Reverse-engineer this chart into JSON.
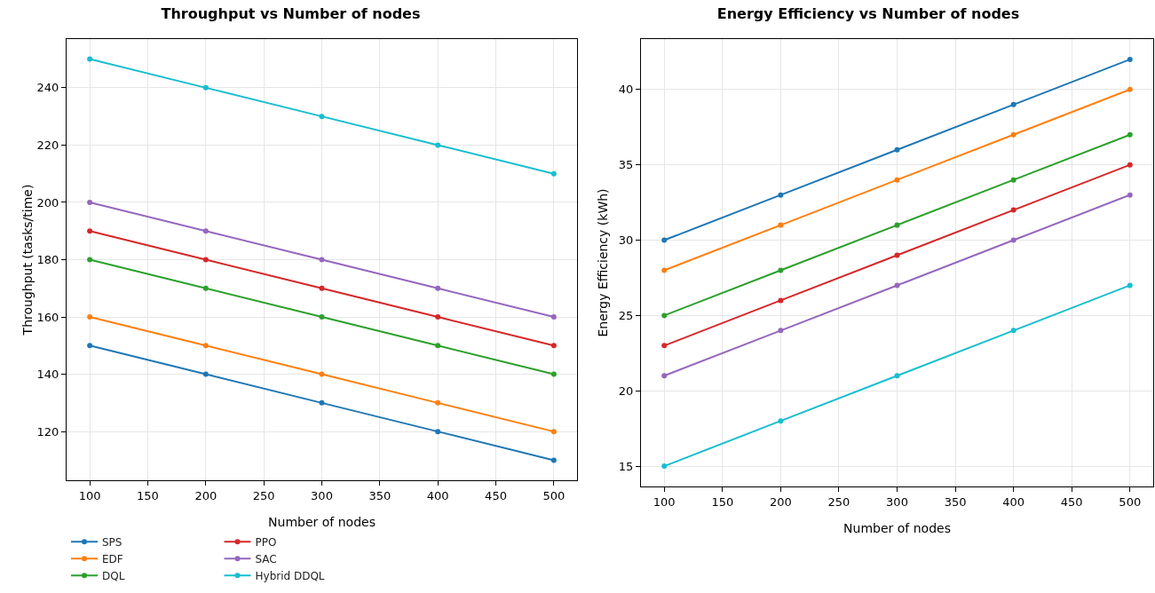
{
  "chart_data": [
    {
      "type": "line",
      "title": "Throughput vs Number of nodes",
      "xlabel": "Number of nodes",
      "ylabel": "Throughput (tasks/time)",
      "x": [
        100,
        200,
        300,
        400,
        500
      ],
      "xlim": [
        80,
        520
      ],
      "xticks": [
        100,
        150,
        200,
        250,
        300,
        350,
        400,
        450,
        500
      ],
      "ylim": [
        103,
        257
      ],
      "yticks": [
        120,
        140,
        160,
        180,
        200,
        220,
        240
      ],
      "grid": true,
      "legend": "bottom left",
      "marker": "circle",
      "line_style": "solid",
      "series": [
        {
          "name": "SPS",
          "color": "#1f77b4",
          "values": [
            150,
            140,
            130,
            120,
            110
          ]
        },
        {
          "name": "EDF",
          "color": "#ff7f0e",
          "values": [
            160,
            150,
            140,
            130,
            120
          ]
        },
        {
          "name": "DQL",
          "color": "#2ca02c",
          "values": [
            180,
            170,
            160,
            150,
            140
          ]
        },
        {
          "name": "PPO",
          "color": "#d62728",
          "values": [
            190,
            180,
            170,
            160,
            150
          ]
        },
        {
          "name": "SAC",
          "color": "#9467bd",
          "values": [
            200,
            190,
            180,
            170,
            160
          ]
        },
        {
          "name": "Hybrid DDQL",
          "color": "#17becf",
          "values": [
            250,
            240,
            230,
            220,
            210
          ]
        }
      ]
    },
    {
      "type": "line",
      "title": "Energy Efficiency vs Number of nodes",
      "xlabel": "Number of nodes",
      "ylabel": "Energy Efficiency (kWh)",
      "x": [
        100,
        200,
        300,
        400,
        500
      ],
      "xlim": [
        80,
        520
      ],
      "xticks": [
        100,
        150,
        200,
        250,
        300,
        350,
        400,
        450,
        500
      ],
      "ylim": [
        13.65,
        43.35
      ],
      "yticks": [
        15,
        20,
        25,
        30,
        35,
        40
      ],
      "grid": true,
      "legend": false,
      "marker": "circle",
      "line_style": "solid",
      "series": [
        {
          "color": "#1f77b4",
          "values": [
            30,
            33,
            36,
            39,
            42
          ]
        },
        {
          "color": "#ff7f0e",
          "values": [
            28,
            31,
            34,
            37,
            40
          ]
        },
        {
          "color": "#2ca02c",
          "values": [
            25,
            28,
            31,
            34,
            37
          ]
        },
        {
          "color": "#d62728",
          "values": [
            23,
            26,
            29,
            32,
            35
          ]
        },
        {
          "color": "#9467bd",
          "values": [
            21,
            24,
            27,
            30,
            33
          ]
        },
        {
          "color": "#17becf",
          "values": [
            15,
            18,
            21,
            24,
            27
          ]
        }
      ]
    }
  ]
}
